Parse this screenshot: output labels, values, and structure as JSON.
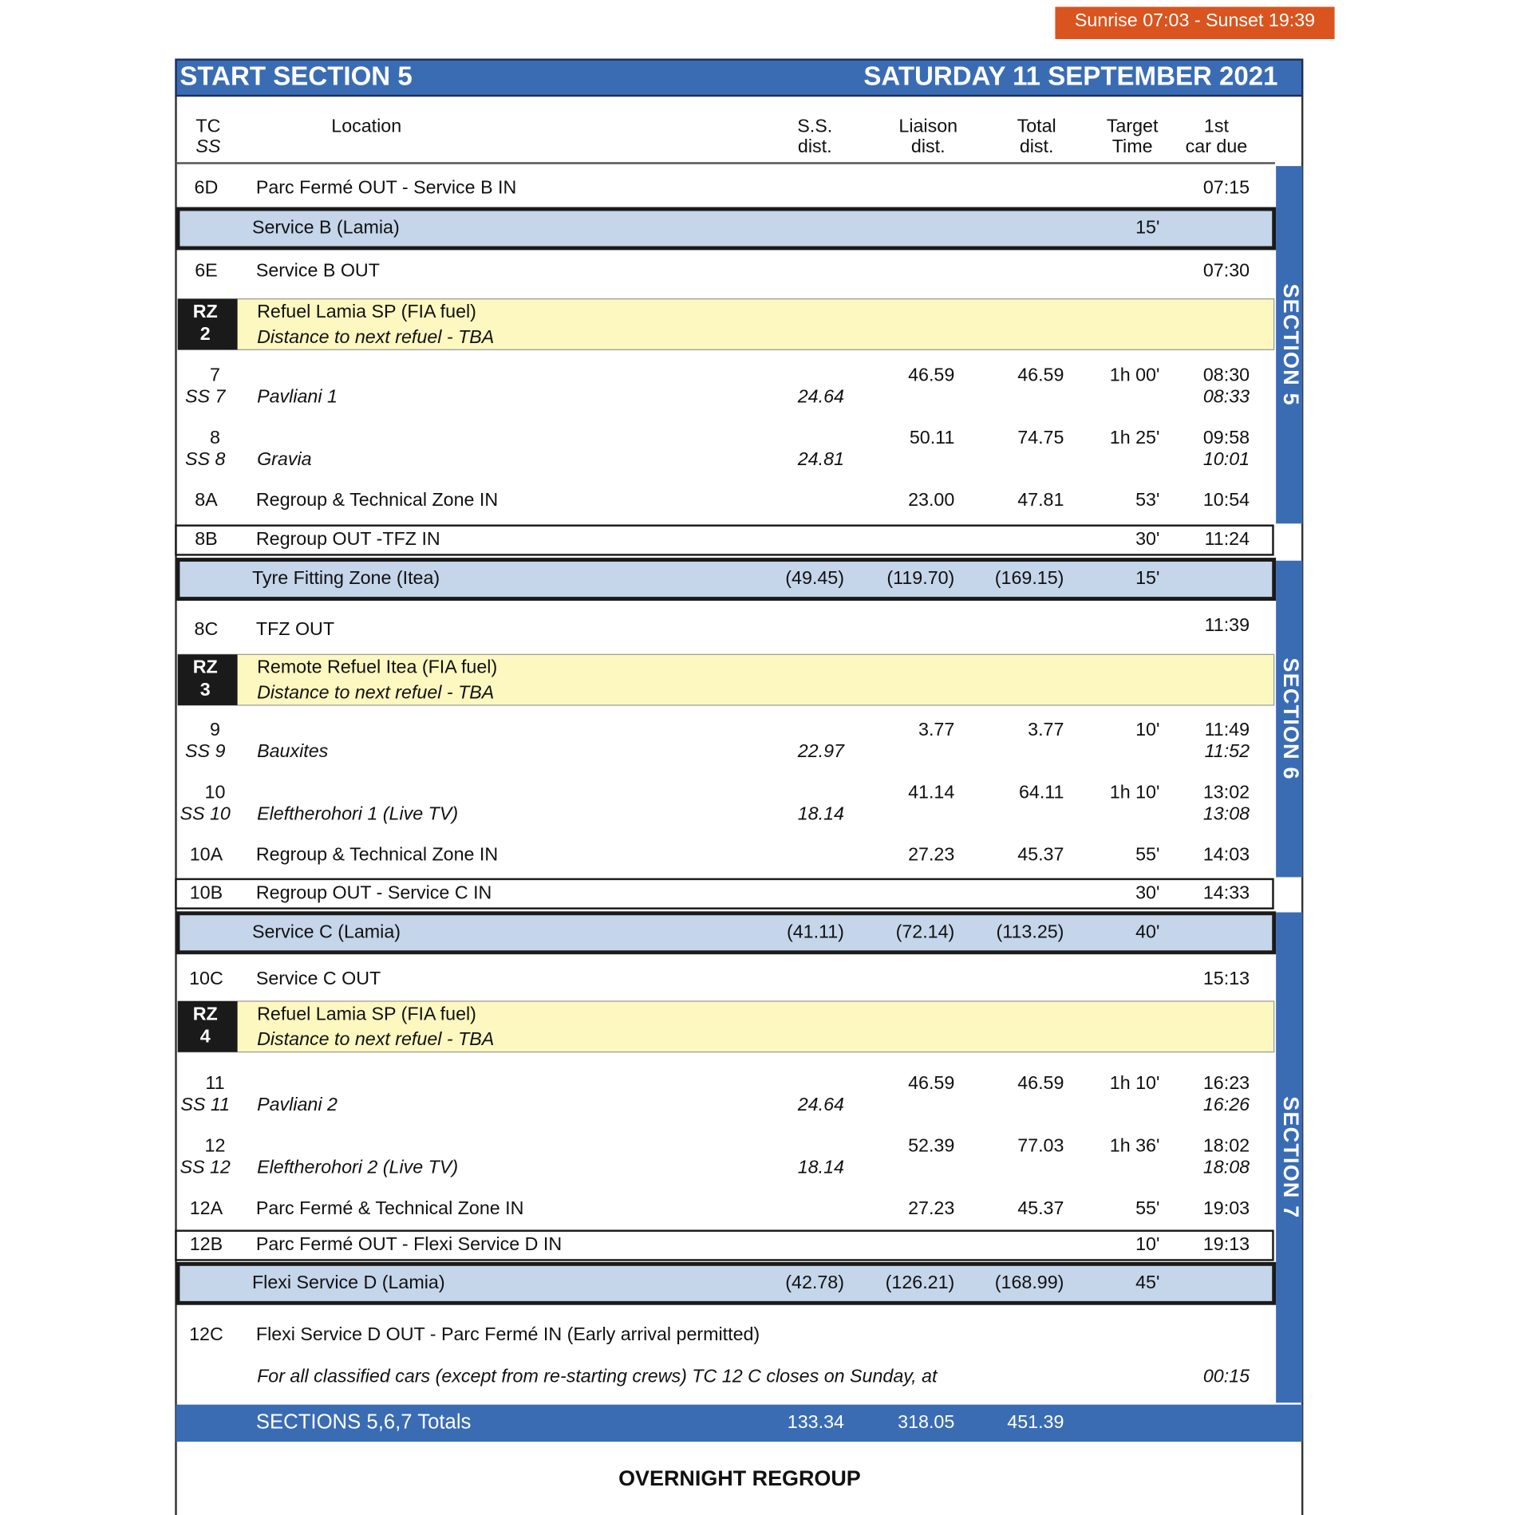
{
  "header": {
    "sun": "Sunrise 07:03 - Sunset 19:39",
    "title": "START SECTION 5",
    "date": "SATURDAY 11 SEPTEMBER 2021"
  },
  "columns": [
    [
      "TC",
      "SS"
    ],
    [
      "Location"
    ],
    [
      "S.S.",
      "dist."
    ],
    [
      "Liaison",
      "dist."
    ],
    [
      "Total",
      "dist."
    ],
    [
      "Target",
      "Time"
    ],
    [
      "1st",
      "car due"
    ]
  ],
  "rows": [
    {
      "tc": "6D",
      "location": "Parc Fermé OUT - Service B IN",
      "due": "07:15"
    },
    {
      "location": "Service  B  (Lamia)",
      "target": "15'"
    },
    {
      "tc": "6E",
      "location": "Service B OUT",
      "due": "07:30"
    },
    {
      "tc": "RZ",
      "ss": "2",
      "location": "Refuel Lamia SP (FIA fuel)",
      "note": "Distance to next refuel - TBA"
    },
    {
      "tc": "7",
      "ss": "SS 7",
      "location": "Pavliani 1",
      "ss_dist": "24.64",
      "liaison": "46.59",
      "total": "46.59",
      "target": "1h 00'",
      "due": "08:30",
      "ss_due": "08:33"
    },
    {
      "tc": "8",
      "ss": "SS 8",
      "location": "Gravia",
      "ss_dist": "24.81",
      "liaison": "50.11",
      "total": "74.75",
      "target": "1h 25'",
      "due": "09:58",
      "ss_due": "10:01"
    },
    {
      "tc": "8A",
      "location": "Regroup & Technical Zone IN",
      "liaison": "23.00",
      "total": "47.81",
      "target": "53'",
      "due": "10:54"
    },
    {
      "tc": "8B",
      "location": "Regroup OUT -TFZ  IN",
      "target": "30'",
      "due": "11:24"
    },
    {
      "location": "Tyre Fitting Zone  (Itea)",
      "ss_dist": "(49.45)",
      "liaison": "(119.70)",
      "total": "(169.15)",
      "target": "15'"
    },
    {
      "tc": "8C",
      "location": "TFZ OUT",
      "due": "11:39"
    },
    {
      "tc": "RZ",
      "ss": "3",
      "location": "Remote Refuel Itea (FIA fuel)",
      "note": "Distance to next refuel - TBA"
    },
    {
      "tc": "9",
      "ss": "SS 9",
      "location": "Bauxites",
      "ss_dist": "22.97",
      "liaison": "3.77",
      "total": "3.77",
      "target": "10'",
      "due": "11:49",
      "ss_due": "11:52"
    },
    {
      "tc": "10",
      "ss": "SS 10",
      "location": "Eleftherohori 1 (Live TV)",
      "ss_dist": "18.14",
      "liaison": "41.14",
      "total": "64.11",
      "target": "1h 10'",
      "due": "13:02",
      "ss_due": "13:08"
    },
    {
      "tc": "10A",
      "location": "Regroup & Technical Zone IN",
      "liaison": "27.23",
      "total": "45.37",
      "target": "55'",
      "due": "14:03"
    },
    {
      "tc": "10B",
      "location": "Regroup OUT  - Service C  IN",
      "target": "30'",
      "due": "14:33"
    },
    {
      "location": "Service C  (Lamia)",
      "ss_dist": "(41.11)",
      "liaison": "(72.14)",
      "total": "(113.25)",
      "target": "40'"
    },
    {
      "tc": "10C",
      "location": "Service C OUT",
      "due": "15:13"
    },
    {
      "tc": "RZ",
      "ss": "4",
      "location": "Refuel Lamia SP (FIA fuel)",
      "note": "Distance to next refuel - TBA"
    },
    {
      "tc": "11",
      "ss": "SS 11",
      "location": "Pavliani 2",
      "ss_dist": "24.64",
      "liaison": "46.59",
      "total": "46.59",
      "target": "1h 10'",
      "due": "16:23",
      "ss_due": "16:26"
    },
    {
      "tc": "12",
      "ss": "SS 12",
      "location": "Eleftherohori 2  (Live TV)",
      "ss_dist": "18.14",
      "liaison": "52.39",
      "total": "77.03",
      "target": "1h 36'",
      "due": "18:02",
      "ss_due": "18:08"
    },
    {
      "tc": "12A",
      "location": "Parc Fermé & Technical Zone IN",
      "liaison": "27.23",
      "total": "45.37",
      "target": "55'",
      "due": "19:03"
    },
    {
      "tc": "12B",
      "location": "Parc Fermé OUT - Flexi Service D  IN",
      "target": "10'",
      "due": "19:13"
    },
    {
      "location": "Flexi Service  D (Lamia)",
      "ss_dist": "(42.78)",
      "liaison": "(126.21)",
      "total": "(168.99)",
      "target": "45'"
    },
    {
      "tc": "12C",
      "location": "Flexi Service  D OUT  - Parc Fermé IN (Early arrival permitted)"
    },
    {
      "note": "For all classified cars (except from re-starting crews) TC 12 C closes on Sunday, at",
      "due": "00:15"
    }
  ],
  "totals": {
    "label": "SECTIONS 5,6,7 Totals",
    "ss_dist": "133.34",
    "liaison": "318.05",
    "total": "451.39"
  },
  "sections": [
    "SECTION 5",
    "SECTION 6",
    "SECTION 7"
  ],
  "footer": "OVERNIGHT REGROUP"
}
